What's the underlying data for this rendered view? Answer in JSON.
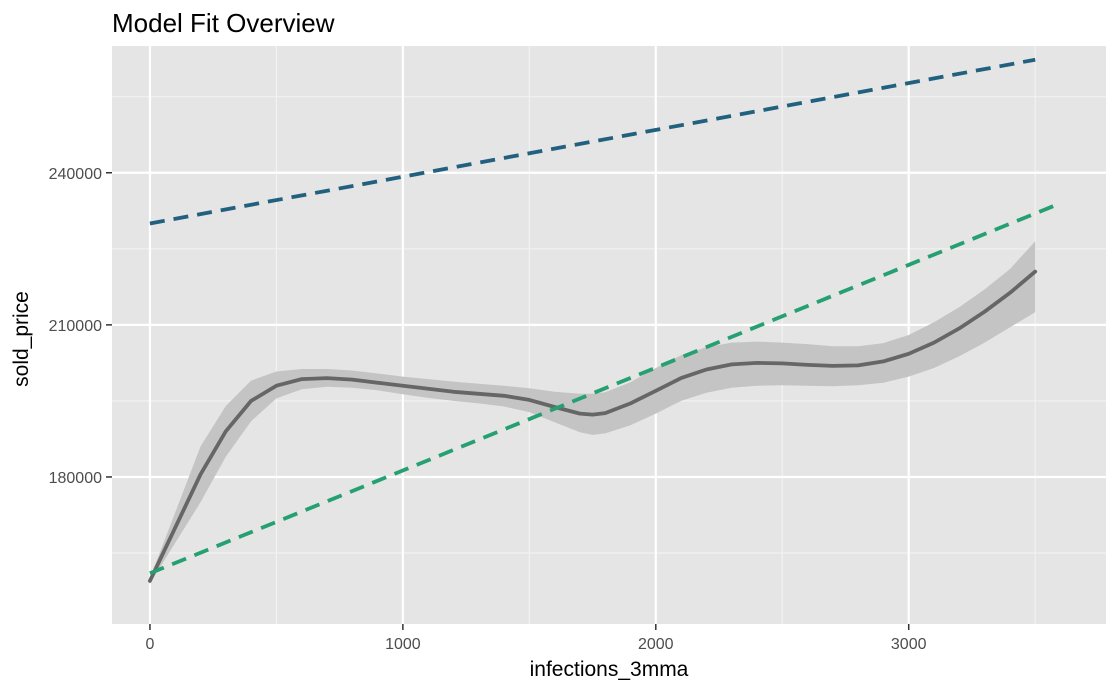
{
  "chart_data": {
    "type": "line",
    "title": "Model Fit Overview",
    "xlabel": "infections_3mma",
    "ylabel": "sold_price",
    "xlim": [
      -150,
      3780
    ],
    "ylim": [
      151000,
      265000
    ],
    "x_ticks": [
      0,
      1000,
      2000,
      3000
    ],
    "x_tick_labels": [
      "0",
      "1000",
      "2000",
      "3000"
    ],
    "y_ticks": [
      180000,
      210000,
      240000
    ],
    "y_tick_labels": [
      "180000",
      "210000",
      "240000"
    ],
    "grid": true,
    "legend": "none",
    "colors": {
      "panel": "#e5e5e5",
      "grid_major": "#ffffff",
      "grid_minor": "#f2f2f2",
      "smooth_line": "#666666",
      "ribbon": "#c4c4c4",
      "fit_blue": "#21607e",
      "fit_green": "#25a071"
    },
    "series": [
      {
        "kind": "smooth",
        "color": "#666666",
        "style": "solid",
        "x": [
          0,
          100,
          200,
          300,
          400,
          500,
          600,
          700,
          800,
          900,
          1000,
          1100,
          1200,
          1300,
          1400,
          1500,
          1600,
          1700,
          1750,
          1800,
          1900,
          2000,
          2100,
          2200,
          2300,
          2400,
          2500,
          2600,
          2700,
          2800,
          2900,
          3000,
          3100,
          3200,
          3300,
          3400,
          3500
        ],
        "y": [
          159500,
          170000,
          180500,
          189000,
          195000,
          198000,
          199300,
          199500,
          199200,
          198600,
          198000,
          197400,
          196800,
          196400,
          196000,
          195200,
          193800,
          192500,
          192300,
          192600,
          194500,
          197000,
          199500,
          201200,
          202200,
          202500,
          202400,
          202100,
          201900,
          202000,
          202800,
          204300,
          206500,
          209300,
          212600,
          216300,
          220500
        ],
        "lower": [
          159000,
          167000,
          175000,
          184000,
          191000,
          195500,
          197300,
          197800,
          197600,
          197100,
          196300,
          195600,
          195000,
          194500,
          193900,
          192800,
          190800,
          188800,
          188300,
          188600,
          190200,
          192500,
          195000,
          196600,
          197600,
          198000,
          198100,
          198000,
          197900,
          198100,
          198600,
          199800,
          201500,
          203800,
          206500,
          209500,
          212500
        ],
        "upper": [
          160000,
          173000,
          186000,
          194000,
          199000,
          200800,
          201300,
          201300,
          201000,
          200400,
          199800,
          199300,
          198800,
          198400,
          198000,
          197500,
          196800,
          196400,
          196400,
          196700,
          198700,
          201500,
          204000,
          205600,
          206500,
          206700,
          206500,
          206200,
          205800,
          205800,
          206400,
          208000,
          210500,
          213500,
          217000,
          221000,
          226500
        ]
      },
      {
        "kind": "linear",
        "color": "#21607e",
        "style": "dashed",
        "x": [
          0,
          3500
        ],
        "y": [
          230000,
          262300
        ]
      },
      {
        "kind": "linear",
        "color": "#25a071",
        "style": "dashed",
        "x": [
          0,
          3600
        ],
        "y": [
          161000,
          234000
        ]
      }
    ]
  }
}
